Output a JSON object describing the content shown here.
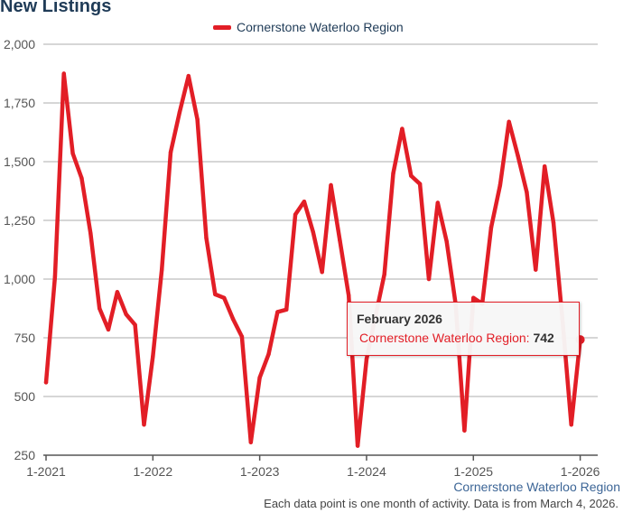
{
  "chart_data": {
    "type": "line",
    "title": "New Listings",
    "series": [
      {
        "name": "Cornerstone Waterloo Region",
        "color": "#e21e26",
        "values": [
          560,
          1010,
          1875,
          1535,
          1430,
          1195,
          875,
          785,
          945,
          850,
          805,
          380,
          670,
          1040,
          1540,
          1710,
          1865,
          1680,
          1175,
          935,
          920,
          830,
          755,
          305,
          580,
          680,
          860,
          870,
          1275,
          1330,
          1200,
          1030,
          1400,
          1165,
          930,
          290,
          660,
          840,
          1020,
          1450,
          1640,
          1440,
          1405,
          1000,
          1325,
          1160,
          895,
          355,
          920,
          895,
          1220,
          1400,
          1670,
          1525,
          1370,
          1040,
          1480,
          1240,
          830,
          380,
          742
        ]
      }
    ],
    "x_ticks": [
      "1-2021",
      "1-2022",
      "1-2023",
      "1-2024",
      "1-2025",
      "1-2026"
    ],
    "y_ticks": [
      "250",
      "500",
      "750",
      "1,000",
      "1,250",
      "1,500",
      "1,750",
      "2,000"
    ],
    "y_tick_values": [
      250,
      500,
      750,
      1000,
      1250,
      1500,
      1750,
      2000
    ],
    "ylim": [
      250,
      2000
    ],
    "xlabel": "",
    "ylabel": "",
    "grid": true,
    "legend_position": "top-center",
    "tooltip": {
      "title": "February 2026",
      "series_label": "Cornerstone Waterloo Region:",
      "value": "742"
    }
  },
  "credit": "Cornerstone Waterloo Region",
  "footnote": "Each data point is one month of activity. Data is from March 4, 2026."
}
